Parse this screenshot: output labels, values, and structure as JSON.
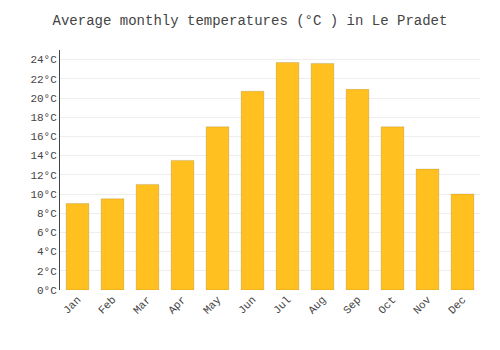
{
  "chart_data": {
    "type": "bar",
    "title": "Average monthly temperatures (°C ) in Le Pradet",
    "categories": [
      "Jan",
      "Feb",
      "Mar",
      "Apr",
      "May",
      "Jun",
      "Jul",
      "Aug",
      "Sep",
      "Oct",
      "Nov",
      "Dec"
    ],
    "values": [
      9.0,
      9.5,
      11.0,
      13.5,
      17.0,
      20.7,
      23.7,
      23.6,
      20.9,
      17.0,
      12.6,
      10.0
    ],
    "color": "#FFC020",
    "ylim": [
      0,
      25
    ],
    "yticks": [
      {
        "value": 0,
        "label": "0°C"
      },
      {
        "value": 2,
        "label": "2°C"
      },
      {
        "value": 4,
        "label": "4°C"
      },
      {
        "value": 6,
        "label": "6°C"
      },
      {
        "value": 8,
        "label": "8°C"
      },
      {
        "value": 10,
        "label": "10°C"
      },
      {
        "value": 12,
        "label": "12°C"
      },
      {
        "value": 14,
        "label": "14°C"
      },
      {
        "value": 16,
        "label": "16°C"
      },
      {
        "value": 18,
        "label": "18°C"
      },
      {
        "value": 20,
        "label": "20°C"
      },
      {
        "value": 22,
        "label": "22°C"
      },
      {
        "value": 24,
        "label": "24°C"
      }
    ],
    "grid": true
  }
}
